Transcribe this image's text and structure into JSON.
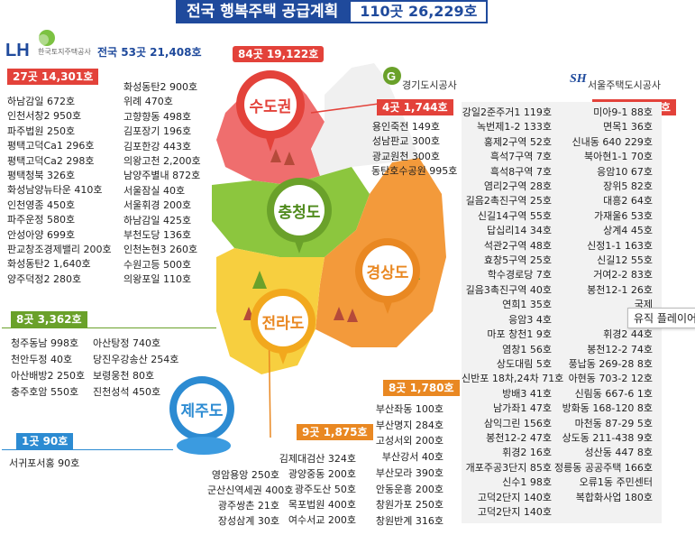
{
  "title": {
    "main": "전국 행복주택 공급계획",
    "sub": "110곳 26,229호"
  },
  "lh": {
    "logo_text": "LH",
    "name": "한국토지주택공사",
    "total": "전국 53곳 21,408호"
  },
  "capital": {
    "summary": "84곳 19,122호",
    "region_label": "수도권",
    "lh_head": "27곳 14,301호",
    "lh_col1": [
      "하남감일 672호",
      "인천서창2 950호",
      "파주법원 250호",
      "평택고덕Ca1 296호",
      "평택고덕Ca2 298호",
      "평택청북 326호",
      "화성남양뉴타운 410호",
      "인천영종 450호",
      "파주운정 580호",
      "안성아양 699호",
      "판교창조경제밸리 200호",
      "화성동탄2 1,640호",
      "양주덕정2 280호"
    ],
    "lh_col2": [
      "화성동탄2 900호",
      "위례 470호",
      "고향향동 498호",
      "김포장기 196호",
      "김포한강 443호",
      "의왕고천 2,200호",
      "남양주별내 872호",
      "서울잠실 40호",
      "서울휘경 200호",
      "하남감일 425호",
      "부천도당 136호",
      "인천논현3 260호",
      "수원고등 500호",
      "의왕포일 110호"
    ],
    "gg_name": "경기도시공사",
    "gg_head": "4곳 1,744호",
    "gg_items": [
      "용인죽전 149호",
      "성남판교 300호",
      "광교원천 300호",
      "동탄호수공원 995호"
    ],
    "sh_name": "서울주택도시공사",
    "sh_head": "53곳 3,077호",
    "sh_col1": [
      "강일2준주거1 119호",
      "녹번제1-2 133호",
      "홍제2구역 52호",
      "흑석7구역 7호",
      "흑석8구역 7호",
      "염리2구역 28호",
      "길음2촉진구역 25호",
      "신길14구역 55호",
      "답십리14 34호",
      "석관2구역 48호",
      "효창5구역 25호",
      "학수경로당 7호",
      "길음3촉진구역 40호",
      "연희1 35호",
      "응암3 4호",
      "마포 창천1 9호",
      "염창1 56호",
      "상도대림 5호",
      "신반포 18차,24차 71호",
      "방배3 41호",
      "남가좌1 47호",
      "삼익그린 156호",
      "봉천12-2 47호",
      "휘경2 16호",
      "개포주공3단지 85호",
      "신수1 98호",
      "고덕2단지 140호",
      "고덕2단지 140호"
    ],
    "sh_col2": [
      "미아9-1 88호",
      "면목1 36호",
      "신내동 640 229호",
      "북아현1-1 70호",
      "응암10 67호",
      "장위5 82호",
      "대흥2 64호",
      "가재울6 53호",
      "상계4 45호",
      "신정1-1 163호",
      "신길12 55호",
      "거여2-2 83호",
      "봉천12-1 26호",
      "국제",
      "장위",
      "휘경2 44호",
      "봉천12-2 74호",
      "풍납동 269-28 8호",
      "아현동 703-2 12호",
      "신림동 667-6 1호",
      "방화동 168-120 8호",
      "마천동 87-29 5호",
      "상도동 211-438 9호",
      "성산동 447 8호",
      "정릉동 공공주택 166호",
      "오류1동 주민센터",
      "복합화사업 180호"
    ]
  },
  "chungcheong": {
    "region_label": "충청도",
    "head": "8곳 3,362호",
    "col1": [
      "청주동남 998호",
      "천안두정 40호",
      "아산배방2 250호",
      "충주호암 550호"
    ],
    "col2": [
      "아산탕정 740호",
      "당진우강송산 254호",
      "보령웅천 80호",
      "진천성석 450호"
    ]
  },
  "gyeongsang": {
    "region_label": "경상도",
    "head": "8곳 1,780호",
    "items": [
      "부산좌동 100호",
      "부산명지 284호",
      "고성서외 200호",
      "부산강서 40호",
      "부산모라 390호",
      "안동운흥 200호",
      "창원가포 250호",
      "창원반계 316호"
    ]
  },
  "jeolla": {
    "region_label": "전라도",
    "head": "9곳 1,875호",
    "col1": [
      "영암용앙 250호",
      "군산신역세권 400호",
      "광주쌍촌 21호",
      "장성삼계 30호"
    ],
    "col2": [
      "김제대검산 324호",
      "광양중동 200호",
      "광주도산 50호",
      "목포법원 400호",
      "여수서교 200호"
    ]
  },
  "jeju": {
    "region_label": "제주도",
    "head": "1곳 90호",
    "items": [
      "서귀포서홍 90호"
    ]
  },
  "tooltip": "유직 플레이어",
  "colors": {
    "red": "#e3423a",
    "green": "#6aa12a",
    "orange": "#e98822",
    "blue": "#2c8bd2",
    "navy": "#1f4a9c"
  }
}
